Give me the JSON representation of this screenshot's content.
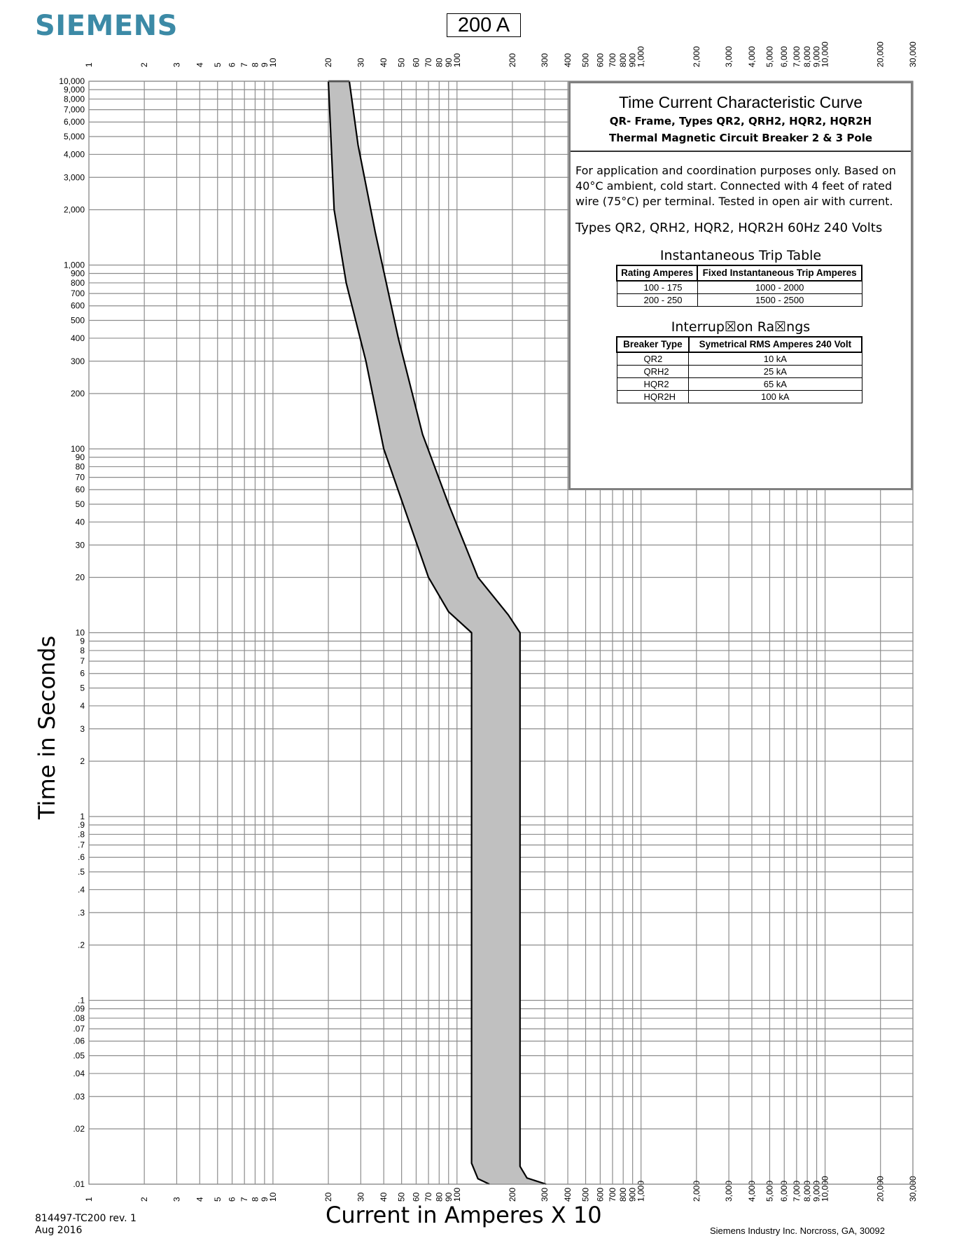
{
  "brand": "SIEMENS",
  "rating_badge": "200  A",
  "info": {
    "title": "Time Current Characteristic Curve",
    "subtitle": "QR- Frame, Types QR2, QRH2, HQR2, HQR2H",
    "subtitle2": "Thermal Magnetic Circuit Breaker   2 & 3 Pole",
    "note": "For application and coordination purposes only. Based on 40°C ambient, cold start. Connected with 4 feet of rated wire (75°C) per terminal. Tested in open air with current.",
    "types_line": "Types QR2, QRH2, HQR2, HQR2H   60Hz  240  Volts",
    "inst_table": {
      "title": "Instantaneous Trip Table",
      "headers": [
        "Rating Amperes",
        "Fixed Instantaneous Trip Amperes"
      ],
      "rows": [
        [
          "100 - 175",
          "1000 - 2000"
        ],
        [
          "200 - 250",
          "1500 - 2500"
        ]
      ]
    },
    "int_table": {
      "title": "Interrup☒on Ra☒ngs",
      "headers": [
        "Breaker Type",
        "Symetrical RMS Amperes 240 Volt"
      ],
      "rows": [
        [
          "QR2",
          "10 kA"
        ],
        [
          "QRH2",
          "25 kA"
        ],
        [
          "HQR2",
          "65 kA"
        ],
        [
          "HQR2H",
          "100 kA"
        ]
      ]
    }
  },
  "doc_id": "814497-TC200   rev. 1",
  "doc_date": "Aug 2016",
  "company": "Siemens Industry Inc.  Norcross, GA, 30092",
  "chart_data": {
    "type": "area",
    "xlabel": "Current in Amperes X 10",
    "ylabel": "Time in Seconds",
    "xscale": "log",
    "yscale": "log",
    "xlim": [
      1,
      30000
    ],
    "ylim": [
      0.01,
      10000
    ],
    "grid": true,
    "x_tick_labels": [
      {
        "v": 1,
        "t": "1"
      },
      {
        "v": 2,
        "t": "2"
      },
      {
        "v": 3,
        "t": "3"
      },
      {
        "v": 4,
        "t": "4"
      },
      {
        "v": 5,
        "t": "5"
      },
      {
        "v": 6,
        "t": "6"
      },
      {
        "v": 7,
        "t": "7"
      },
      {
        "v": 8,
        "t": "8"
      },
      {
        "v": 9,
        "t": "9"
      },
      {
        "v": 10,
        "t": "10"
      },
      {
        "v": 20,
        "t": "20"
      },
      {
        "v": 30,
        "t": "30"
      },
      {
        "v": 40,
        "t": "40"
      },
      {
        "v": 50,
        "t": "50"
      },
      {
        "v": 60,
        "t": "60"
      },
      {
        "v": 70,
        "t": "70"
      },
      {
        "v": 80,
        "t": "80"
      },
      {
        "v": 90,
        "t": "90"
      },
      {
        "v": 100,
        "t": "100"
      },
      {
        "v": 200,
        "t": "200"
      },
      {
        "v": 300,
        "t": "300"
      },
      {
        "v": 400,
        "t": "400"
      },
      {
        "v": 500,
        "t": "500"
      },
      {
        "v": 600,
        "t": "600"
      },
      {
        "v": 700,
        "t": "700"
      },
      {
        "v": 800,
        "t": "800"
      },
      {
        "v": 900,
        "t": "900"
      },
      {
        "v": 1000,
        "t": "1,000"
      },
      {
        "v": 2000,
        "t": "2,000"
      },
      {
        "v": 3000,
        "t": "3,000"
      },
      {
        "v": 4000,
        "t": "4,000"
      },
      {
        "v": 5000,
        "t": "5,000"
      },
      {
        "v": 6000,
        "t": "6,000"
      },
      {
        "v": 7000,
        "t": "7,000"
      },
      {
        "v": 8000,
        "t": "8,000"
      },
      {
        "v": 9000,
        "t": "9,000"
      },
      {
        "v": 10000,
        "t": "10,000"
      },
      {
        "v": 20000,
        "t": "20,000"
      },
      {
        "v": 30000,
        "t": "30,000"
      }
    ],
    "y_tick_labels": [
      {
        "v": 0.01,
        "t": ".01"
      },
      {
        "v": 0.02,
        "t": ".02"
      },
      {
        "v": 0.03,
        "t": ".03"
      },
      {
        "v": 0.04,
        "t": ".04"
      },
      {
        "v": 0.05,
        "t": ".05"
      },
      {
        "v": 0.06,
        "t": ".06"
      },
      {
        "v": 0.07,
        "t": ".07"
      },
      {
        "v": 0.08,
        "t": ".08"
      },
      {
        "v": 0.09,
        "t": ".09"
      },
      {
        "v": 0.1,
        "t": ".1"
      },
      {
        "v": 0.2,
        "t": ".2"
      },
      {
        "v": 0.3,
        "t": ".3"
      },
      {
        "v": 0.4,
        "t": ".4"
      },
      {
        "v": 0.5,
        "t": ".5"
      },
      {
        "v": 0.6,
        "t": ".6"
      },
      {
        "v": 0.7,
        "t": ".7"
      },
      {
        "v": 0.8,
        "t": ".8"
      },
      {
        "v": 0.9,
        "t": ".9"
      },
      {
        "v": 1,
        "t": "1"
      },
      {
        "v": 2,
        "t": "2"
      },
      {
        "v": 3,
        "t": "3"
      },
      {
        "v": 4,
        "t": "4"
      },
      {
        "v": 5,
        "t": "5"
      },
      {
        "v": 6,
        "t": "6"
      },
      {
        "v": 7,
        "t": "7"
      },
      {
        "v": 8,
        "t": "8"
      },
      {
        "v": 9,
        "t": "9"
      },
      {
        "v": 10,
        "t": "10"
      },
      {
        "v": 20,
        "t": "20"
      },
      {
        "v": 30,
        "t": "30"
      },
      {
        "v": 40,
        "t": "40"
      },
      {
        "v": 50,
        "t": "50"
      },
      {
        "v": 60,
        "t": "60"
      },
      {
        "v": 70,
        "t": "70"
      },
      {
        "v": 80,
        "t": "80"
      },
      {
        "v": 90,
        "t": "90"
      },
      {
        "v": 100,
        "t": "100"
      },
      {
        "v": 200,
        "t": "200"
      },
      {
        "v": 300,
        "t": "300"
      },
      {
        "v": 400,
        "t": "400"
      },
      {
        "v": 500,
        "t": "500"
      },
      {
        "v": 600,
        "t": "600"
      },
      {
        "v": 700,
        "t": "700"
      },
      {
        "v": 800,
        "t": "800"
      },
      {
        "v": 900,
        "t": "900"
      },
      {
        "v": 1000,
        "t": "1,000"
      },
      {
        "v": 2000,
        "t": "2,000"
      },
      {
        "v": 3000,
        "t": "3,000"
      },
      {
        "v": 4000,
        "t": "4,000"
      },
      {
        "v": 5000,
        "t": "5,000"
      },
      {
        "v": 6000,
        "t": "6,000"
      },
      {
        "v": 7000,
        "t": "7,000"
      },
      {
        "v": 8000,
        "t": "8,000"
      },
      {
        "v": 9000,
        "t": "9,000"
      },
      {
        "v": 10000,
        "t": "10,000"
      }
    ],
    "band": {
      "fill": "#c0c0c0",
      "min_curve": [
        [
          20,
          10000
        ],
        [
          21.5,
          2000
        ],
        [
          25,
          800
        ],
        [
          32,
          300
        ],
        [
          40,
          100
        ],
        [
          55,
          40
        ],
        [
          70,
          20
        ],
        [
          90,
          13
        ],
        [
          120,
          10
        ],
        [
          120,
          0.013
        ],
        [
          130,
          0.0107
        ],
        [
          150,
          0.01
        ]
      ],
      "max_curve": [
        [
          26,
          10000
        ],
        [
          29,
          4500
        ],
        [
          36,
          1500
        ],
        [
          48,
          400
        ],
        [
          65,
          120
        ],
        [
          90,
          50
        ],
        [
          130,
          20
        ],
        [
          190,
          12.5
        ],
        [
          220,
          10
        ],
        [
          220,
          0.0125
        ],
        [
          240,
          0.0108
        ],
        [
          305,
          0.01
        ]
      ]
    }
  }
}
